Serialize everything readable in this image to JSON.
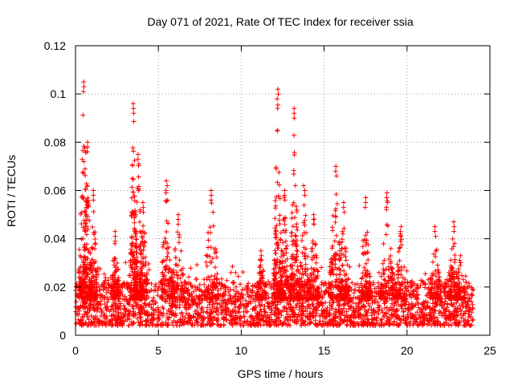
{
  "chart_data": {
    "type": "scatter",
    "title": "Day 071 of 2021, Rate Of TEC Index for receiver ssia",
    "xlabel": "GPS time / hours",
    "ylabel": "ROTI / TECUs",
    "xlim": [
      0,
      25
    ],
    "ylim": [
      0,
      0.12
    ],
    "xticks": [
      0,
      5,
      10,
      15,
      20,
      25
    ],
    "yticks": [
      0,
      0.02,
      0.04,
      0.06,
      0.08,
      0.1,
      0.12
    ],
    "xtick_labels": [
      "0",
      "5",
      "10",
      "15",
      "20",
      "25"
    ],
    "ytick_labels": [
      "0",
      "0.02",
      "0.04",
      "0.06",
      "0.08",
      "0.1",
      "0.12"
    ],
    "grid": true,
    "marker": "+",
    "series": [
      {
        "name": "ROTI",
        "color": "#ff0000",
        "x_range": [
          0,
          24
        ],
        "baseline": {
          "min": 0.004,
          "max": 0.022,
          "typical": 0.012
        },
        "bursts": [
          {
            "x": 0.5,
            "peak": 0.105,
            "width": 0.3
          },
          {
            "x": 0.7,
            "peak": 0.08,
            "width": 0.25
          },
          {
            "x": 1.1,
            "peak": 0.06,
            "width": 0.2
          },
          {
            "x": 2.4,
            "peak": 0.043,
            "width": 0.25
          },
          {
            "x": 3.5,
            "peak": 0.096,
            "width": 0.2
          },
          {
            "x": 3.8,
            "peak": 0.075,
            "width": 0.25
          },
          {
            "x": 4.1,
            "peak": 0.055,
            "width": 0.25
          },
          {
            "x": 5.5,
            "peak": 0.064,
            "width": 0.35
          },
          {
            "x": 6.2,
            "peak": 0.05,
            "width": 0.4
          },
          {
            "x": 8.2,
            "peak": 0.06,
            "width": 0.45
          },
          {
            "x": 11.2,
            "peak": 0.035,
            "width": 0.3
          },
          {
            "x": 12.2,
            "peak": 0.102,
            "width": 0.25
          },
          {
            "x": 12.6,
            "peak": 0.06,
            "width": 0.25
          },
          {
            "x": 13.2,
            "peak": 0.094,
            "width": 0.25
          },
          {
            "x": 13.8,
            "peak": 0.062,
            "width": 0.3
          },
          {
            "x": 14.4,
            "peak": 0.05,
            "width": 0.3
          },
          {
            "x": 15.7,
            "peak": 0.07,
            "width": 0.4
          },
          {
            "x": 16.2,
            "peak": 0.055,
            "width": 0.3
          },
          {
            "x": 17.5,
            "peak": 0.057,
            "width": 0.3
          },
          {
            "x": 18.8,
            "peak": 0.059,
            "width": 0.4
          },
          {
            "x": 19.6,
            "peak": 0.045,
            "width": 0.35
          },
          {
            "x": 21.7,
            "peak": 0.045,
            "width": 0.35
          },
          {
            "x": 22.8,
            "peak": 0.047,
            "width": 0.3
          },
          {
            "x": 23.2,
            "peak": 0.033,
            "width": 0.3
          }
        ]
      }
    ]
  }
}
